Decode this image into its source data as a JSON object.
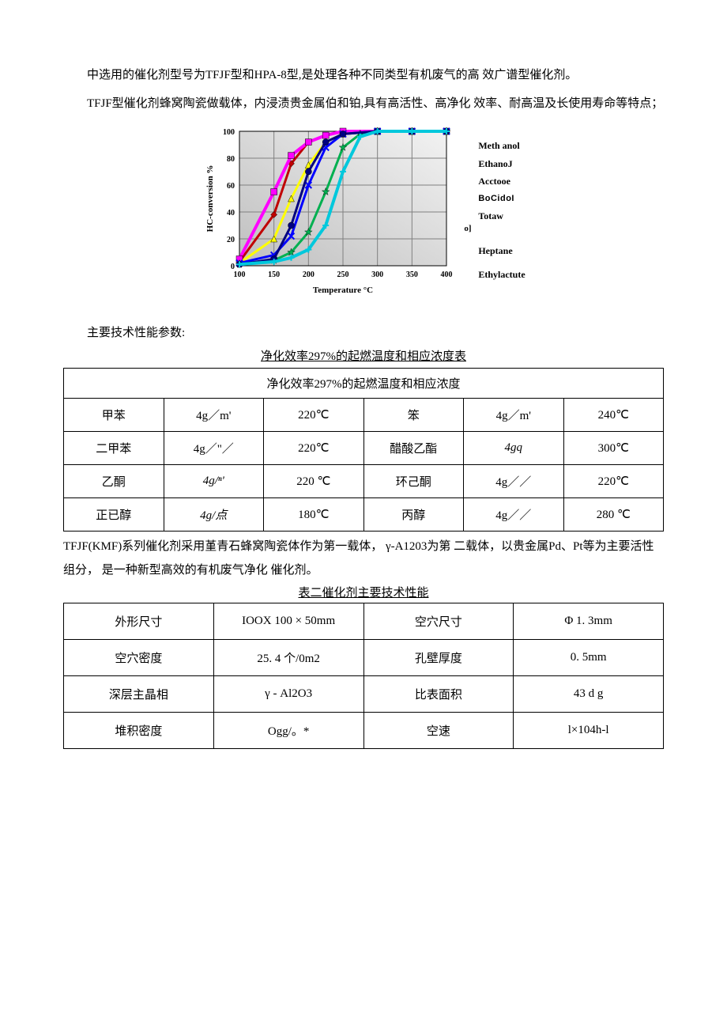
{
  "paragraphs": {
    "p1": "中选用的催化剂型号为TFJF型和HPA-8型,是处理各种不同类型有机废气的高 效广谱型催化剂。",
    "p2": "TFJF型催化剂蜂窝陶瓷做载体，内浸渍贵金属伯和铂,具有高活性、高净化 效率、耐高温及长使用寿命等特点；",
    "section_label": "主要技术性能参数:",
    "caption1": "净化效率297%的起燃温度和相应浓度表",
    "header1": "净化效率297%的起燃温度和相应浓度",
    "between": "TFJF(KMF)系列催化剂采用堇青石蜂窝陶瓷体作为第一载体， γ-A1203为第 二载体，以贵金属Pd、Pt等为主要活性组分， 是一种新型高效的有机废气净化 催化剂。",
    "caption2": "表二催化剂主要技术性能"
  },
  "chart": {
    "type": "line",
    "xlabel": "Temperature °C",
    "ylabel": "HC-conversion %",
    "xlim": [
      100,
      400
    ],
    "ylim": [
      0,
      100
    ],
    "xtick_step": 50,
    "ytick_step": 20,
    "label_fontsize": 11,
    "tick_fontsize": 10,
    "background_color": "#e8e8e8",
    "grid_color": "#808080",
    "plot_bg": "#d8d8d8",
    "ol_text": "o]",
    "legend_items": [
      {
        "label": "Meth anol",
        "color": "#c00000"
      },
      {
        "label": "EthanoJ",
        "color": "#ff00ff"
      },
      {
        "label": "Acctooe",
        "color": "#ffff00"
      },
      {
        "label": "BoCidoI",
        "color": "#0000ff"
      },
      {
        "label": "Totaw",
        "color": "#00b050"
      },
      {
        "label": "Heptane",
        "color": "#000080"
      },
      {
        "label": "Ethylactute",
        "color": "#00c8dc"
      }
    ],
    "series": [
      {
        "color": "#c00000",
        "width": 3,
        "marker": "diamond",
        "points": [
          [
            100,
            3
          ],
          [
            150,
            38
          ],
          [
            175,
            76
          ],
          [
            200,
            92
          ],
          [
            225,
            97
          ],
          [
            250,
            100
          ],
          [
            300,
            100
          ],
          [
            350,
            100
          ],
          [
            400,
            100
          ]
        ]
      },
      {
        "color": "#ff00ff",
        "width": 4,
        "marker": "square",
        "points": [
          [
            100,
            5
          ],
          [
            150,
            55
          ],
          [
            175,
            82
          ],
          [
            200,
            92
          ],
          [
            225,
            97
          ],
          [
            250,
            100
          ],
          [
            300,
            100
          ],
          [
            350,
            100
          ],
          [
            400,
            100
          ]
        ]
      },
      {
        "color": "#ffff00",
        "width": 3,
        "marker": "triangle",
        "points": [
          [
            100,
            2
          ],
          [
            150,
            20
          ],
          [
            175,
            50
          ],
          [
            200,
            75
          ],
          [
            225,
            92
          ],
          [
            250,
            98
          ],
          [
            300,
            100
          ],
          [
            350,
            100
          ],
          [
            400,
            100
          ]
        ]
      },
      {
        "color": "#0000ff",
        "width": 3,
        "marker": "x",
        "points": [
          [
            100,
            2
          ],
          [
            150,
            8
          ],
          [
            175,
            22
          ],
          [
            200,
            60
          ],
          [
            225,
            88
          ],
          [
            250,
            98
          ],
          [
            300,
            100
          ],
          [
            350,
            100
          ],
          [
            400,
            100
          ]
        ]
      },
      {
        "color": "#00b050",
        "width": 3,
        "marker": "star",
        "points": [
          [
            100,
            1
          ],
          [
            150,
            4
          ],
          [
            175,
            10
          ],
          [
            200,
            25
          ],
          [
            225,
            55
          ],
          [
            250,
            88
          ],
          [
            275,
            98
          ],
          [
            300,
            100
          ],
          [
            350,
            100
          ],
          [
            400,
            100
          ]
        ]
      },
      {
        "color": "#000080",
        "width": 3,
        "marker": "circle",
        "points": [
          [
            100,
            1
          ],
          [
            150,
            5
          ],
          [
            175,
            30
          ],
          [
            200,
            70
          ],
          [
            225,
            92
          ],
          [
            250,
            98
          ],
          [
            300,
            100
          ],
          [
            350,
            100
          ],
          [
            400,
            100
          ]
        ]
      },
      {
        "color": "#00c8dc",
        "width": 4,
        "marker": "plus",
        "points": [
          [
            100,
            1
          ],
          [
            150,
            3
          ],
          [
            175,
            6
          ],
          [
            200,
            12
          ],
          [
            225,
            30
          ],
          [
            250,
            70
          ],
          [
            275,
            96
          ],
          [
            300,
            100
          ],
          [
            350,
            100
          ],
          [
            400,
            100
          ]
        ]
      }
    ]
  },
  "table1": {
    "rows": [
      [
        "甲苯",
        "4g／m'",
        "220℃",
        "笨",
        "4g／m'",
        "240℃"
      ],
      [
        "二甲苯",
        "4g／\"／",
        "220℃",
        "醋酸乙酯",
        "4gq",
        "300℃"
      ],
      [
        "乙酮",
        "4g/ⁿ'",
        "220 ℃",
        "环己酮",
        "4g／／",
        "220℃"
      ],
      [
        "正已醇",
        "4g/点",
        "180℃",
        "丙醇",
        "4g／／",
        "280 ℃"
      ]
    ]
  },
  "table2": {
    "rows": [
      [
        "外形尺寸",
        "IOOX 100 × 50mm",
        "空穴尺寸",
        "Φ 1. 3mm"
      ],
      [
        "空穴密度",
        "25. 4 个/0m2",
        "孔壁厚度",
        "0. 5mm"
      ],
      [
        "深层主晶相",
        "γ - Al2O3",
        "比表面积",
        "43 d g"
      ],
      [
        "堆积密度",
        "Ogg/。*",
        "空速",
        "l×104h-l"
      ]
    ]
  }
}
